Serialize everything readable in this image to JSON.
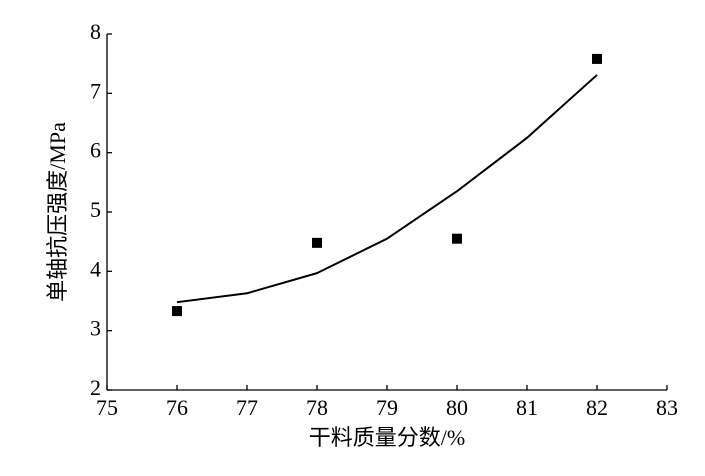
{
  "chart_data": {
    "type": "scatter",
    "x_label": "干料质量分数/%",
    "y_label": "单轴抗压强度/MPa",
    "xlim": [
      75,
      83
    ],
    "xticks": [
      75,
      76,
      77,
      78,
      79,
      80,
      81,
      82,
      83
    ],
    "ylim": [
      2,
      8
    ],
    "yticks": [
      2,
      3,
      4,
      5,
      6,
      7,
      8
    ],
    "series": [
      {
        "color": "#000000",
        "marker": "square",
        "x": [
          76,
          78,
          80,
          82
        ],
        "values": [
          3.33,
          4.48,
          4.55,
          7.58
        ]
      },
      {
        "color": "#000000",
        "marker": "line",
        "x": [
          76,
          77,
          78,
          79,
          80,
          81,
          82
        ],
        "values": [
          3.48,
          3.63,
          3.97,
          4.55,
          5.35,
          6.25,
          7.31
        ]
      }
    ]
  }
}
